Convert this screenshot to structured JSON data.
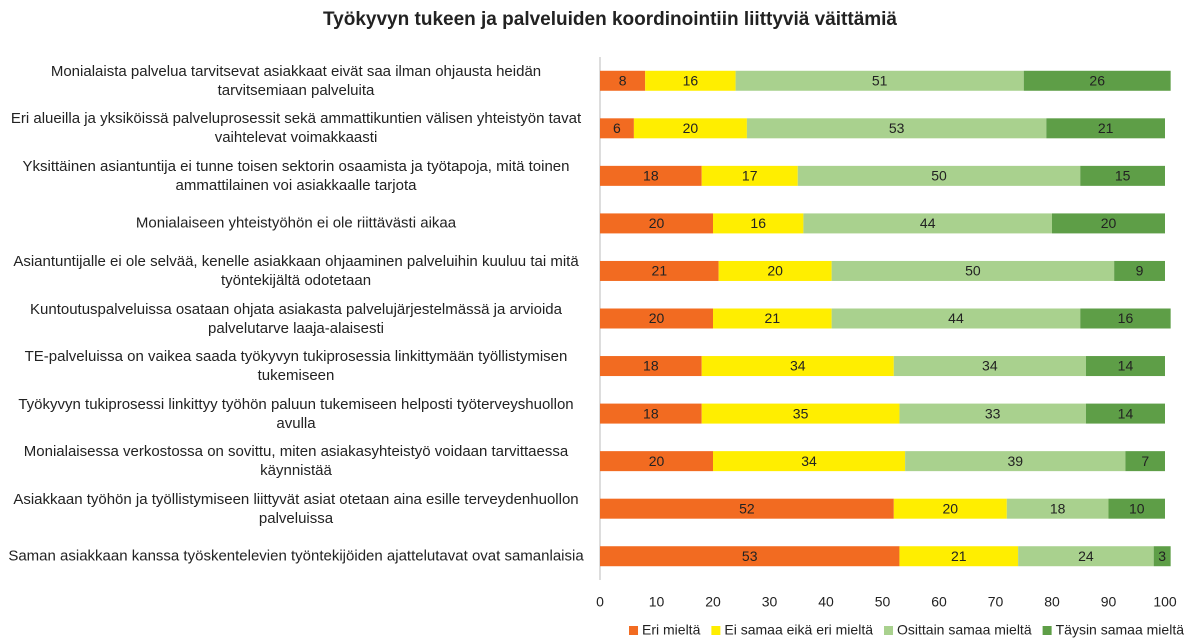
{
  "chart_data": {
    "type": "stacked-bar-horizontal",
    "title": "Työkyvyn tukeen ja palveluiden koordinointiin liittyviä väittämiä",
    "categories": [
      "Monialaista palvelua tarvitsevat asiakkaat eivät saa ilman ohjausta heidän tarvitsemiaan palveluita",
      "Eri alueilla ja yksiköissä palveluprosessit sekä ammattikuntien välisen yhteistyön tavat vaihtelevat voimakkaasti",
      "Yksittäinen asiantuntija ei tunne toisen sektorin osaamista ja työtapoja, mitä toinen ammattilainen voi asiakkaalle tarjota",
      "Monialaiseen yhteistyöhön ei ole riittävästi aikaa",
      "Asiantuntijalle ei ole selvää, kenelle asiakkaan ohjaaminen palveluihin kuuluu tai mitä työntekijältä odotetaan",
      "Kuntoutuspalveluissa osataan ohjata asiakasta palvelujärjestelmässä ja arvioida palvelutarve laaja-alaisesti",
      "TE-palveluissa on vaikea saada työkyvyn tukiprosessia linkittymään työllistymisen tukemiseen",
      "Työkyvyn tukiprosessi linkittyy työhön paluun tukemiseen helposti työterveyshuollon avulla",
      "Monialaisessa verkostossa on sovittu, miten asiakasyhteistyö voidaan tarvittaessa käynnistää",
      "Asiakkaan työhön ja työllistymiseen liittyvät asiat otetaan aina esille terveydenhuollon palveluissa",
      "Saman asiakkaan kanssa työskentelevien työntekijöiden ajattelutavat ovat samanlaisia"
    ],
    "series": [
      {
        "name": "Eri mieltä",
        "color": "#f26b21",
        "values": [
          8,
          6,
          18,
          20,
          21,
          20,
          18,
          18,
          20,
          52,
          53
        ]
      },
      {
        "name": "Ei samaa eikä eri mieltä",
        "color": "#ffee00",
        "values": [
          16,
          20,
          17,
          16,
          20,
          21,
          34,
          35,
          34,
          20,
          21
        ]
      },
      {
        "name": "Osittain samaa mieltä",
        "color": "#a9d18e",
        "values": [
          51,
          53,
          50,
          44,
          50,
          44,
          34,
          33,
          39,
          18,
          24
        ]
      },
      {
        "name": "Täysin samaa mieltä",
        "color": "#5e9e47",
        "values": [
          26,
          21,
          15,
          20,
          9,
          16,
          14,
          14,
          7,
          10,
          3
        ]
      }
    ],
    "xlim": [
      0,
      100
    ],
    "xticks": [
      0,
      10,
      20,
      30,
      40,
      50,
      60,
      70,
      80,
      90,
      100
    ],
    "legend": "bottom-right",
    "grid": false
  }
}
